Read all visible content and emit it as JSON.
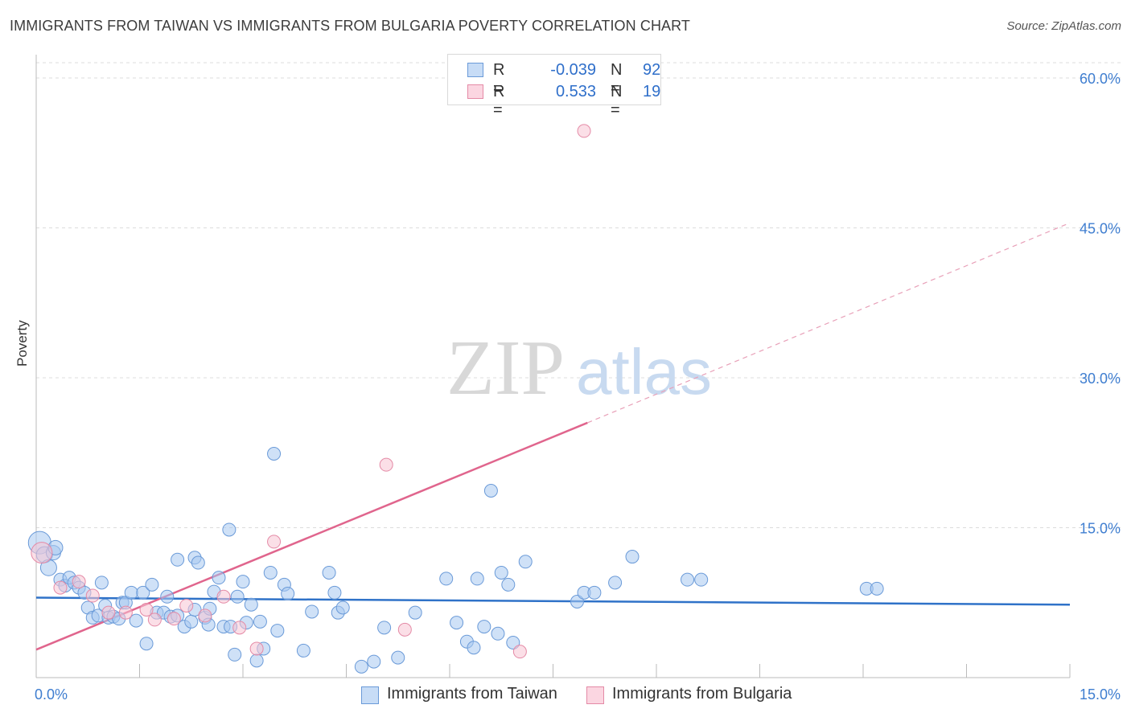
{
  "title": "IMMIGRANTS FROM TAIWAN VS IMMIGRANTS FROM BULGARIA POVERTY CORRELATION CHART",
  "source": "Source: ZipAtlas.com",
  "watermark": {
    "zip": "ZIP",
    "atlas": "atlas"
  },
  "legend_top": {
    "rows": [
      {
        "r_label": "R =",
        "r_value": "-0.039",
        "n_label": "N =",
        "n_value": "92",
        "color": "#a8c8f0",
        "border": "#5b8fd8"
      },
      {
        "r_label": "R =",
        "r_value": "0.533",
        "n_label": "N =",
        "n_value": "19",
        "color": "#f8c4d4",
        "border": "#e07c9c"
      }
    ]
  },
  "legend_bottom": {
    "taiwan": "Immigrants from Taiwan",
    "bulgaria": "Immigrants from Bulgaria"
  },
  "chart_data": {
    "type": "scatter",
    "title": "IMMIGRANTS FROM TAIWAN VS IMMIGRANTS FROM BULGARIA POVERTY CORRELATION CHART",
    "xlabel": "",
    "ylabel": "Poverty",
    "xlim": [
      0,
      15
    ],
    "ylim": [
      0,
      60
    ],
    "x_tick_labels": [
      {
        "value": 0,
        "label": "0.0%"
      },
      {
        "value": 15,
        "label": "15.0%"
      }
    ],
    "x_minor_ticks": [
      1.5,
      3.0,
      4.5,
      6.0,
      7.5,
      9.0,
      10.5,
      12.0,
      13.5,
      15.0
    ],
    "y_ticks": [
      {
        "value": 15,
        "label": "15.0%"
      },
      {
        "value": 30,
        "label": "30.0%"
      },
      {
        "value": 45,
        "label": "45.0%"
      },
      {
        "value": 60,
        "label": "60.0%"
      }
    ],
    "grid": true,
    "series": [
      {
        "name": "Immigrants from Taiwan",
        "color": "#a8c8f0",
        "stroke": "#6a9ad8",
        "trend": {
          "x0": 0,
          "y0": 8.0,
          "x1": 15,
          "y1": 7.3,
          "color": "#2f72c8"
        },
        "points": [
          [
            0.05,
            13.5,
            14
          ],
          [
            0.12,
            12.3,
            10
          ],
          [
            0.18,
            11.0,
            10
          ],
          [
            0.25,
            12.5,
            9
          ],
          [
            0.28,
            13.0,
            9
          ],
          [
            0.35,
            9.8,
            8
          ],
          [
            0.42,
            9.2,
            8
          ],
          [
            0.48,
            10.0,
            8
          ],
          [
            0.55,
            9.5,
            8
          ],
          [
            0.62,
            9.0,
            8
          ],
          [
            0.7,
            8.5,
            8
          ],
          [
            0.75,
            7.0,
            8
          ],
          [
            0.82,
            6.0,
            8
          ],
          [
            0.9,
            6.2,
            8
          ],
          [
            0.95,
            9.5,
            8
          ],
          [
            1.0,
            7.2,
            8
          ],
          [
            1.05,
            6.0,
            8
          ],
          [
            1.12,
            6.1,
            8
          ],
          [
            1.2,
            5.9,
            8
          ],
          [
            1.25,
            7.5,
            8
          ],
          [
            1.3,
            7.5,
            8
          ],
          [
            1.38,
            8.5,
            8
          ],
          [
            1.45,
            5.7,
            8
          ],
          [
            1.55,
            8.5,
            8
          ],
          [
            1.6,
            3.4,
            8
          ],
          [
            1.68,
            9.3,
            8
          ],
          [
            1.75,
            6.5,
            8
          ],
          [
            1.85,
            6.5,
            8
          ],
          [
            1.9,
            8.1,
            8
          ],
          [
            1.95,
            6.1,
            8
          ],
          [
            2.05,
            6.2,
            8
          ],
          [
            2.05,
            11.8,
            8
          ],
          [
            2.15,
            5.1,
            8
          ],
          [
            2.25,
            5.6,
            8
          ],
          [
            2.3,
            6.8,
            8
          ],
          [
            2.3,
            12.0,
            8
          ],
          [
            2.35,
            11.5,
            8
          ],
          [
            2.45,
            6.0,
            8
          ],
          [
            2.5,
            5.3,
            8
          ],
          [
            2.52,
            6.9,
            8
          ],
          [
            2.58,
            8.6,
            8
          ],
          [
            2.65,
            10.0,
            8
          ],
          [
            2.72,
            5.1,
            8
          ],
          [
            2.8,
            14.8,
            8
          ],
          [
            2.82,
            5.1,
            8
          ],
          [
            2.88,
            2.3,
            8
          ],
          [
            2.92,
            8.1,
            8
          ],
          [
            3.0,
            9.6,
            8
          ],
          [
            3.05,
            5.5,
            8
          ],
          [
            3.12,
            7.3,
            8
          ],
          [
            3.2,
            1.7,
            8
          ],
          [
            3.25,
            5.6,
            8
          ],
          [
            3.3,
            2.9,
            8
          ],
          [
            3.4,
            10.5,
            8
          ],
          [
            3.45,
            22.4,
            8
          ],
          [
            3.5,
            4.7,
            8
          ],
          [
            3.6,
            9.3,
            8
          ],
          [
            3.65,
            8.4,
            8
          ],
          [
            3.88,
            2.7,
            8
          ],
          [
            4.0,
            6.6,
            8
          ],
          [
            4.25,
            10.5,
            8
          ],
          [
            4.33,
            8.5,
            8
          ],
          [
            4.38,
            6.5,
            8
          ],
          [
            4.45,
            7.0,
            8
          ],
          [
            4.72,
            1.1,
            8
          ],
          [
            4.9,
            1.6,
            8
          ],
          [
            5.05,
            5.0,
            8
          ],
          [
            5.25,
            2.0,
            8
          ],
          [
            5.5,
            6.5,
            8
          ],
          [
            5.95,
            9.9,
            8
          ],
          [
            6.1,
            5.5,
            8
          ],
          [
            6.25,
            3.6,
            8
          ],
          [
            6.4,
            9.9,
            8
          ],
          [
            6.35,
            3.0,
            8
          ],
          [
            6.5,
            5.1,
            8
          ],
          [
            6.6,
            18.7,
            8
          ],
          [
            6.7,
            4.4,
            8
          ],
          [
            6.75,
            10.5,
            8
          ],
          [
            6.85,
            9.3,
            8
          ],
          [
            6.92,
            3.5,
            8
          ],
          [
            7.1,
            11.6,
            8
          ],
          [
            7.85,
            7.6,
            8
          ],
          [
            7.95,
            8.5,
            8
          ],
          [
            8.1,
            8.5,
            8
          ],
          [
            8.4,
            9.5,
            8
          ],
          [
            8.65,
            12.1,
            8
          ],
          [
            9.45,
            9.8,
            8
          ],
          [
            9.65,
            9.8,
            8
          ],
          [
            12.05,
            8.9,
            8
          ],
          [
            12.2,
            8.9,
            8
          ]
        ]
      },
      {
        "name": "Immigrants from Bulgaria",
        "color": "#f8c4d4",
        "stroke": "#e48aa6",
        "trend": {
          "x0": 0,
          "y0": 2.8,
          "x1": 8.0,
          "y1": 25.5,
          "x_dash_end": 15,
          "y_dash_end": 45.5,
          "color": "#e0658d"
        },
        "points": [
          [
            0.08,
            12.5,
            13
          ],
          [
            0.35,
            9.0,
            8
          ],
          [
            0.62,
            9.6,
            8
          ],
          [
            0.82,
            8.2,
            8
          ],
          [
            1.05,
            6.5,
            8
          ],
          [
            1.3,
            6.5,
            8
          ],
          [
            1.6,
            6.8,
            8
          ],
          [
            1.72,
            5.8,
            8
          ],
          [
            2.0,
            5.9,
            8
          ],
          [
            2.18,
            7.2,
            8
          ],
          [
            2.45,
            6.2,
            8
          ],
          [
            2.72,
            8.1,
            8
          ],
          [
            2.95,
            5.0,
            8
          ],
          [
            3.2,
            2.9,
            8
          ],
          [
            3.45,
            13.6,
            8
          ],
          [
            5.08,
            21.3,
            8
          ],
          [
            5.35,
            4.8,
            8
          ],
          [
            7.02,
            2.6,
            8
          ],
          [
            7.95,
            54.7,
            8
          ]
        ]
      }
    ]
  }
}
